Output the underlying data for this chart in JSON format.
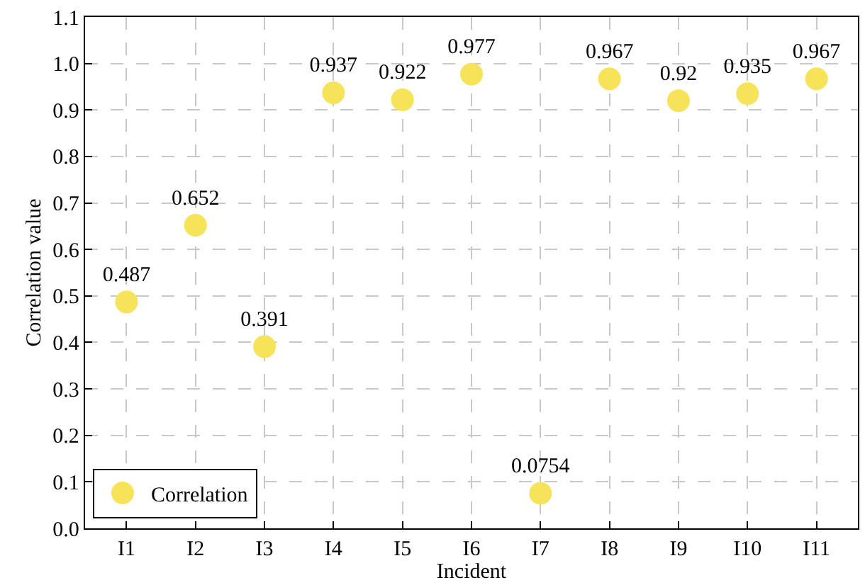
{
  "chart_data": {
    "type": "scatter",
    "xlabel": "Incident",
    "ylabel": "Correlation value",
    "categories": [
      "I1",
      "I2",
      "I3",
      "I4",
      "I5",
      "I6",
      "I7",
      "I8",
      "I9",
      "I10",
      "I11"
    ],
    "series": [
      {
        "name": "Correlation",
        "color": "#f7e35a",
        "values": [
          0.487,
          0.652,
          0.391,
          0.937,
          0.922,
          0.977,
          0.0754,
          0.967,
          0.92,
          0.935,
          0.967
        ]
      }
    ],
    "ylim": [
      0,
      1.1
    ],
    "yticks": [
      {
        "value": 0,
        "label": "0.0"
      },
      {
        "value": 0.1,
        "label": "0.1"
      },
      {
        "value": 0.2,
        "label": "0.2"
      },
      {
        "value": 0.3,
        "label": "0.3"
      },
      {
        "value": 0.4,
        "label": "0.4"
      },
      {
        "value": 0.5,
        "label": "0.5"
      },
      {
        "value": 0.6,
        "label": "0.6"
      },
      {
        "value": 0.7,
        "label": "0.7"
      },
      {
        "value": 0.8,
        "label": "0.8"
      },
      {
        "value": 0.9,
        "label": "0.9"
      },
      {
        "value": 1.0,
        "label": "1.0"
      },
      {
        "value": 1.1,
        "label": "1.1"
      }
    ],
    "grid": true,
    "legend": "bottom left",
    "marker": "circle",
    "data_labels": true
  }
}
